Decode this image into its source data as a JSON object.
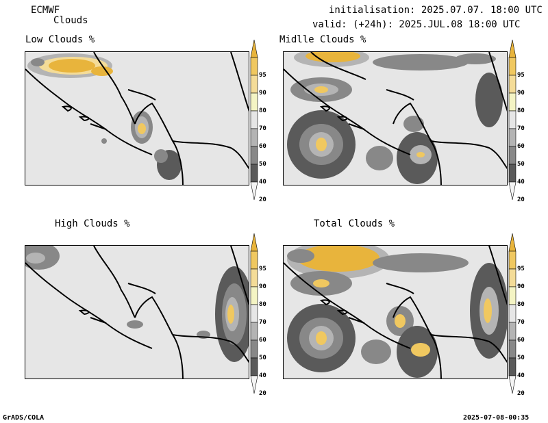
{
  "header": {
    "model": "ECMWF",
    "parameter": "Clouds",
    "init_line": "initialisation: 2025.07.07. 18:00 UTC",
    "valid_line": "valid: (+24h): 2025.JUL.08 18:00 UTC"
  },
  "panels": [
    {
      "title": "Low Clouds %"
    },
    {
      "title": "Midlle Clouds %"
    },
    {
      "title": "High Clouds %"
    },
    {
      "title": "Total Clouds %"
    }
  ],
  "colorbar": {
    "levels": [
      "95",
      "90",
      "80",
      "70",
      "60",
      "50",
      "40",
      "20"
    ],
    "colors": [
      "#e8b43c",
      "#f0c860",
      "#f4dc98",
      "#f4f4c4",
      "#e6e6e6",
      "#b4b4b4",
      "#888888",
      "#5a5a5a",
      "#f4f4f4"
    ]
  },
  "footer": {
    "left": "GrADS/COLA",
    "right": "2025-07-08-00:35"
  }
}
